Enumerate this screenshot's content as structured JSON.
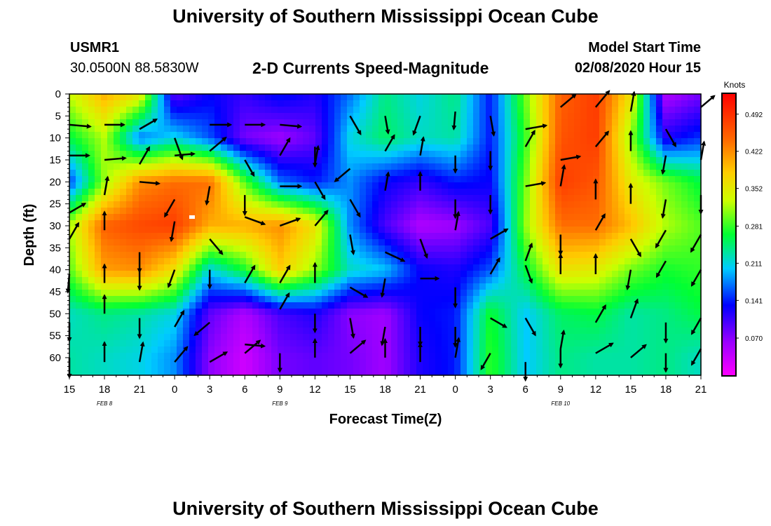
{
  "header": {
    "title": "University of Southern Mississippi Ocean Cube",
    "station": "USMR1",
    "coords": "30.0500N 88.5830W",
    "subtitle": "2-D Currents Speed-Magnitude",
    "model_label": "Model Start Time",
    "model_time": "02/08/2020 Hour 15"
  },
  "footer": {
    "title": "University of Southern Mississippi Ocean Cube"
  },
  "chart_data": {
    "type": "heatmap",
    "title": "2-D Currents Speed-Magnitude",
    "xlabel": "Forecast Time(Z)",
    "ylabel": "Depth (ft)",
    "x_ticks": [
      "15",
      "18",
      "21",
      "0",
      "3",
      "6",
      "9",
      "12",
      "15",
      "18",
      "21",
      "0",
      "3",
      "6",
      "9",
      "12",
      "15",
      "18",
      "21"
    ],
    "date_labels": [
      {
        "label": "FEB 8",
        "at_tick": 1
      },
      {
        "label": "FEB 9",
        "at_tick": 6
      },
      {
        "label": "FEB 10",
        "at_tick": 14
      }
    ],
    "y_ticks": [
      0,
      5,
      10,
      15,
      20,
      25,
      30,
      35,
      40,
      45,
      50,
      55,
      60
    ],
    "ylim": [
      0,
      64
    ],
    "colorbar": {
      "unit": "Knots",
      "ticks": [
        "0.492",
        "0.422",
        "0.352",
        "0.281",
        "0.211",
        "0.141",
        "0.070"
      ],
      "range": [
        0,
        0.53
      ]
    },
    "speed_grid": {
      "columns_every_hours": 3,
      "depths_ft": [
        0,
        10,
        20,
        30,
        40,
        50,
        60
      ],
      "values": [
        [
          0.33,
          0.4,
          0.36,
          0.09,
          0.13,
          0.11,
          0.14,
          0.12,
          0.17,
          0.24,
          0.21,
          0.24,
          0.14,
          0.3,
          0.45,
          0.48,
          0.36,
          0.05,
          0.08
        ],
        [
          0.26,
          0.32,
          0.17,
          0.21,
          0.16,
          0.08,
          0.06,
          0.09,
          0.21,
          0.25,
          0.22,
          0.23,
          0.14,
          0.28,
          0.46,
          0.48,
          0.31,
          0.12,
          0.15
        ],
        [
          0.15,
          0.31,
          0.42,
          0.44,
          0.44,
          0.29,
          0.17,
          0.14,
          0.18,
          0.13,
          0.11,
          0.14,
          0.13,
          0.3,
          0.48,
          0.46,
          0.35,
          0.3,
          0.26
        ],
        [
          0.32,
          0.45,
          0.47,
          0.48,
          0.4,
          0.4,
          0.42,
          0.36,
          0.18,
          0.1,
          0.05,
          0.06,
          0.1,
          0.31,
          0.44,
          0.44,
          0.39,
          0.32,
          0.29
        ],
        [
          0.29,
          0.41,
          0.42,
          0.36,
          0.21,
          0.27,
          0.38,
          0.31,
          0.22,
          0.2,
          0.13,
          0.12,
          0.16,
          0.26,
          0.36,
          0.35,
          0.3,
          0.27,
          0.28
        ],
        [
          0.22,
          0.24,
          0.23,
          0.21,
          0.09,
          0.05,
          0.1,
          0.12,
          0.07,
          0.06,
          0.13,
          0.14,
          0.27,
          0.2,
          0.25,
          0.26,
          0.23,
          0.24,
          0.26
        ],
        [
          0.23,
          0.22,
          0.21,
          0.18,
          0.07,
          0.03,
          0.08,
          0.09,
          0.08,
          0.06,
          0.12,
          0.14,
          0.28,
          0.2,
          0.24,
          0.23,
          0.23,
          0.24,
          0.22
        ]
      ]
    },
    "vectors": [
      {
        "x": 0,
        "d": 7,
        "a": -5,
        "l": 30
      },
      {
        "x": 1,
        "d": 7,
        "a": 0,
        "l": 28
      },
      {
        "x": 2,
        "d": 8,
        "a": 30,
        "l": 28
      },
      {
        "x": 3,
        "d": 10,
        "a": -70,
        "l": 32
      },
      {
        "x": 4,
        "d": 7,
        "a": 0,
        "l": 30
      },
      {
        "x": 5,
        "d": 7,
        "a": 0,
        "l": 28
      },
      {
        "x": 6,
        "d": 7,
        "a": -5,
        "l": 30
      },
      {
        "x": 7,
        "d": 12,
        "a": -90,
        "l": 28
      },
      {
        "x": 8,
        "d": 5,
        "a": -60,
        "l": 30
      },
      {
        "x": 9,
        "d": 5,
        "a": -80,
        "l": 25
      },
      {
        "x": 10,
        "d": 5,
        "a": -110,
        "l": 28
      },
      {
        "x": 11,
        "d": 4,
        "a": -95,
        "l": 25
      },
      {
        "x": 12,
        "d": 5,
        "a": -80,
        "l": 28
      },
      {
        "x": 13,
        "d": 8,
        "a": 10,
        "l": 30
      },
      {
        "x": 14,
        "d": 3,
        "a": 40,
        "l": 28
      },
      {
        "x": 15,
        "d": 3,
        "a": 50,
        "l": 30
      },
      {
        "x": 16,
        "d": 4,
        "a": 80,
        "l": 28
      },
      {
        "x": 17,
        "d": 8,
        "a": -60,
        "l": 28
      },
      {
        "x": 18,
        "d": 3,
        "a": 40,
        "l": 25
      },
      {
        "x": 0,
        "d": 14,
        "a": 0,
        "l": 28
      },
      {
        "x": 1,
        "d": 15,
        "a": 5,
        "l": 30
      },
      {
        "x": 2,
        "d": 16,
        "a": 60,
        "l": 28
      },
      {
        "x": 3,
        "d": 14,
        "a": 5,
        "l": 28
      },
      {
        "x": 4,
        "d": 13,
        "a": 40,
        "l": 30
      },
      {
        "x": 5,
        "d": 15,
        "a": -60,
        "l": 26
      },
      {
        "x": 6,
        "d": 14,
        "a": 60,
        "l": 28
      },
      {
        "x": 7,
        "d": 16,
        "a": 80,
        "l": 26
      },
      {
        "x": 8,
        "d": 17,
        "a": -140,
        "l": 28
      },
      {
        "x": 9,
        "d": 13,
        "a": 60,
        "l": 26
      },
      {
        "x": 10,
        "d": 14,
        "a": 80,
        "l": 26
      },
      {
        "x": 11,
        "d": 14,
        "a": -90,
        "l": 24
      },
      {
        "x": 12,
        "d": 13,
        "a": -90,
        "l": 26
      },
      {
        "x": 13,
        "d": 12,
        "a": 60,
        "l": 26
      },
      {
        "x": 14,
        "d": 15,
        "a": 10,
        "l": 28
      },
      {
        "x": 15,
        "d": 12,
        "a": 50,
        "l": 28
      },
      {
        "x": 16,
        "d": 13,
        "a": 90,
        "l": 28
      },
      {
        "x": 17,
        "d": 14,
        "a": -100,
        "l": 26
      },
      {
        "x": 18,
        "d": 15,
        "a": 80,
        "l": 26
      },
      {
        "x": 0,
        "d": 27,
        "a": 30,
        "l": 26
      },
      {
        "x": 1,
        "d": 23,
        "a": 80,
        "l": 26
      },
      {
        "x": 2,
        "d": 20,
        "a": -5,
        "l": 28
      },
      {
        "x": 3,
        "d": 24,
        "a": -120,
        "l": 28
      },
      {
        "x": 4,
        "d": 21,
        "a": -100,
        "l": 26
      },
      {
        "x": 5,
        "d": 23,
        "a": -90,
        "l": 28
      },
      {
        "x": 6,
        "d": 21,
        "a": 0,
        "l": 30
      },
      {
        "x": 7,
        "d": 20,
        "a": -60,
        "l": 28
      },
      {
        "x": 8,
        "d": 24,
        "a": -60,
        "l": 28
      },
      {
        "x": 9,
        "d": 22,
        "a": 80,
        "l": 26
      },
      {
        "x": 10,
        "d": 22,
        "a": 90,
        "l": 26
      },
      {
        "x": 11,
        "d": 24,
        "a": -90,
        "l": 26
      },
      {
        "x": 12,
        "d": 23,
        "a": -90,
        "l": 26
      },
      {
        "x": 13,
        "d": 21,
        "a": 10,
        "l": 28
      },
      {
        "x": 14,
        "d": 21,
        "a": 80,
        "l": 30
      },
      {
        "x": 15,
        "d": 24,
        "a": 90,
        "l": 28
      },
      {
        "x": 16,
        "d": 25,
        "a": 90,
        "l": 28
      },
      {
        "x": 17,
        "d": 24,
        "a": -100,
        "l": 26
      },
      {
        "x": 18,
        "d": 23,
        "a": -90,
        "l": 26
      },
      {
        "x": 0,
        "d": 33,
        "a": 60,
        "l": 26
      },
      {
        "x": 1,
        "d": 31,
        "a": 90,
        "l": 26
      },
      {
        "x": 2,
        "d": 36,
        "a": -90,
        "l": 28
      },
      {
        "x": 3,
        "d": 29,
        "a": -100,
        "l": 28
      },
      {
        "x": 4,
        "d": 33,
        "a": -50,
        "l": 28
      },
      {
        "x": 5,
        "d": 28,
        "a": -20,
        "l": 30
      },
      {
        "x": 6,
        "d": 30,
        "a": 20,
        "l": 30
      },
      {
        "x": 7,
        "d": 30,
        "a": 50,
        "l": 28
      },
      {
        "x": 8,
        "d": 32,
        "a": -80,
        "l": 28
      },
      {
        "x": 9,
        "d": 36,
        "a": -25,
        "l": 30
      },
      {
        "x": 10,
        "d": 33,
        "a": -70,
        "l": 28
      },
      {
        "x": 11,
        "d": 31,
        "a": 80,
        "l": 26
      },
      {
        "x": 12,
        "d": 33,
        "a": 30,
        "l": 28
      },
      {
        "x": 13,
        "d": 39,
        "a": -70,
        "l": 26
      },
      {
        "x": 14,
        "d": 32,
        "a": -90,
        "l": 28
      },
      {
        "x": 15,
        "d": 31,
        "a": 60,
        "l": 26
      },
      {
        "x": 16,
        "d": 33,
        "a": -60,
        "l": 28
      },
      {
        "x": 17,
        "d": 31,
        "a": -120,
        "l": 28
      },
      {
        "x": 18,
        "d": 32,
        "a": -120,
        "l": 28
      },
      {
        "x": 0,
        "d": 41,
        "a": -95,
        "l": 26
      },
      {
        "x": 1,
        "d": 43,
        "a": 90,
        "l": 26
      },
      {
        "x": 2,
        "d": 40,
        "a": -90,
        "l": 28
      },
      {
        "x": 3,
        "d": 40,
        "a": -110,
        "l": 26
      },
      {
        "x": 4,
        "d": 40,
        "a": -90,
        "l": 26
      },
      {
        "x": 5,
        "d": 43,
        "a": 60,
        "l": 28
      },
      {
        "x": 6,
        "d": 43,
        "a": 60,
        "l": 28
      },
      {
        "x": 7,
        "d": 43,
        "a": 90,
        "l": 28
      },
      {
        "x": 8,
        "d": 44,
        "a": -30,
        "l": 28
      },
      {
        "x": 9,
        "d": 42,
        "a": -100,
        "l": 26
      },
      {
        "x": 10,
        "d": 42,
        "a": 0,
        "l": 26
      },
      {
        "x": 11,
        "d": 44,
        "a": -90,
        "l": 28
      },
      {
        "x": 12,
        "d": 41,
        "a": 60,
        "l": 26
      },
      {
        "x": 13,
        "d": 38,
        "a": 70,
        "l": 26
      },
      {
        "x": 14,
        "d": 41,
        "a": 90,
        "l": 28
      },
      {
        "x": 15,
        "d": 41,
        "a": 90,
        "l": 28
      },
      {
        "x": 16,
        "d": 40,
        "a": -100,
        "l": 28
      },
      {
        "x": 17,
        "d": 38,
        "a": -120,
        "l": 26
      },
      {
        "x": 18,
        "d": 40,
        "a": -120,
        "l": 26
      },
      {
        "x": 0,
        "d": 52,
        "a": -90,
        "l": 26
      },
      {
        "x": 1,
        "d": 50,
        "a": 90,
        "l": 26
      },
      {
        "x": 2,
        "d": 51,
        "a": -90,
        "l": 28
      },
      {
        "x": 3,
        "d": 53,
        "a": 60,
        "l": 26
      },
      {
        "x": 4,
        "d": 52,
        "a": -140,
        "l": 28
      },
      {
        "x": 5,
        "d": 57,
        "a": -5,
        "l": 28
      },
      {
        "x": 6,
        "d": 49,
        "a": 60,
        "l": 26
      },
      {
        "x": 7,
        "d": 50,
        "a": -90,
        "l": 26
      },
      {
        "x": 8,
        "d": 51,
        "a": -80,
        "l": 28
      },
      {
        "x": 9,
        "d": 53,
        "a": -100,
        "l": 26
      },
      {
        "x": 10,
        "d": 53,
        "a": -90,
        "l": 26
      },
      {
        "x": 11,
        "d": 53,
        "a": -90,
        "l": 28
      },
      {
        "x": 12,
        "d": 51,
        "a": -30,
        "l": 26
      },
      {
        "x": 13,
        "d": 51,
        "a": -60,
        "l": 28
      },
      {
        "x": 14,
        "d": 58,
        "a": -90,
        "l": 26
      },
      {
        "x": 15,
        "d": 52,
        "a": 60,
        "l": 28
      },
      {
        "x": 16,
        "d": 51,
        "a": 70,
        "l": 28
      },
      {
        "x": 17,
        "d": 52,
        "a": -90,
        "l": 28
      },
      {
        "x": 18,
        "d": 51,
        "a": -120,
        "l": 26
      },
      {
        "x": 0,
        "d": 60,
        "a": -90,
        "l": 28
      },
      {
        "x": 1,
        "d": 61,
        "a": 90,
        "l": 28
      },
      {
        "x": 2,
        "d": 61,
        "a": 80,
        "l": 28
      },
      {
        "x": 3,
        "d": 61,
        "a": 50,
        "l": 28
      },
      {
        "x": 4,
        "d": 61,
        "a": 30,
        "l": 28
      },
      {
        "x": 5,
        "d": 59,
        "a": 40,
        "l": 28
      },
      {
        "x": 6,
        "d": 59,
        "a": -90,
        "l": 26
      },
      {
        "x": 7,
        "d": 60,
        "a": 90,
        "l": 26
      },
      {
        "x": 8,
        "d": 59,
        "a": 40,
        "l": 28
      },
      {
        "x": 9,
        "d": 60,
        "a": 90,
        "l": 26
      },
      {
        "x": 10,
        "d": 61,
        "a": 90,
        "l": 26
      },
      {
        "x": 11,
        "d": 60,
        "a": 80,
        "l": 28
      },
      {
        "x": 12,
        "d": 59,
        "a": -120,
        "l": 26
      },
      {
        "x": 13,
        "d": 61,
        "a": -90,
        "l": 26
      },
      {
        "x": 14,
        "d": 58,
        "a": 80,
        "l": 26
      },
      {
        "x": 15,
        "d": 59,
        "a": 30,
        "l": 28
      },
      {
        "x": 16,
        "d": 60,
        "a": 40,
        "l": 28
      },
      {
        "x": 17,
        "d": 59,
        "a": -90,
        "l": 26
      },
      {
        "x": 18,
        "d": 58,
        "a": -120,
        "l": 26
      }
    ]
  }
}
